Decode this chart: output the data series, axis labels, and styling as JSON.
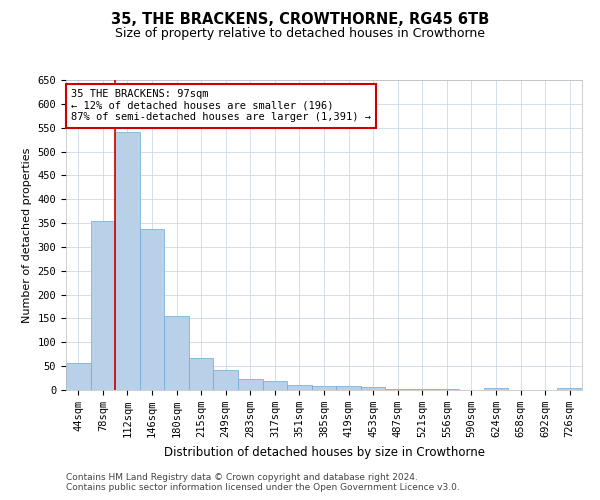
{
  "title": "35, THE BRACKENS, CROWTHORNE, RG45 6TB",
  "subtitle": "Size of property relative to detached houses in Crowthorne",
  "xlabel": "Distribution of detached houses by size in Crowthorne",
  "ylabel": "Number of detached properties",
  "categories": [
    "44sqm",
    "78sqm",
    "112sqm",
    "146sqm",
    "180sqm",
    "215sqm",
    "249sqm",
    "283sqm",
    "317sqm",
    "351sqm",
    "385sqm",
    "419sqm",
    "453sqm",
    "487sqm",
    "521sqm",
    "556sqm",
    "590sqm",
    "624sqm",
    "658sqm",
    "692sqm",
    "726sqm"
  ],
  "values": [
    57,
    355,
    540,
    337,
    155,
    68,
    42,
    24,
    18,
    10,
    8,
    8,
    7,
    2,
    2,
    2,
    0,
    4,
    0,
    0,
    4
  ],
  "bar_color": "#b8d0e8",
  "bar_edge_color": "#6aaad4",
  "vline_x": 1.5,
  "vline_color": "#cc0000",
  "annotation_text": "35 THE BRACKENS: 97sqm\n← 12% of detached houses are smaller (196)\n87% of semi-detached houses are larger (1,391) →",
  "annotation_box_color": "#ffffff",
  "annotation_box_edge_color": "#cc0000",
  "ylim": [
    0,
    650
  ],
  "yticks": [
    0,
    50,
    100,
    150,
    200,
    250,
    300,
    350,
    400,
    450,
    500,
    550,
    600,
    650
  ],
  "background_color": "#ffffff",
  "grid_color": "#ccd9e8",
  "footer_line1": "Contains HM Land Registry data © Crown copyright and database right 2024.",
  "footer_line2": "Contains public sector information licensed under the Open Government Licence v3.0.",
  "title_fontsize": 10.5,
  "subtitle_fontsize": 9,
  "xlabel_fontsize": 8.5,
  "ylabel_fontsize": 8,
  "tick_fontsize": 7.5,
  "annotation_fontsize": 7.5,
  "footer_fontsize": 6.5
}
